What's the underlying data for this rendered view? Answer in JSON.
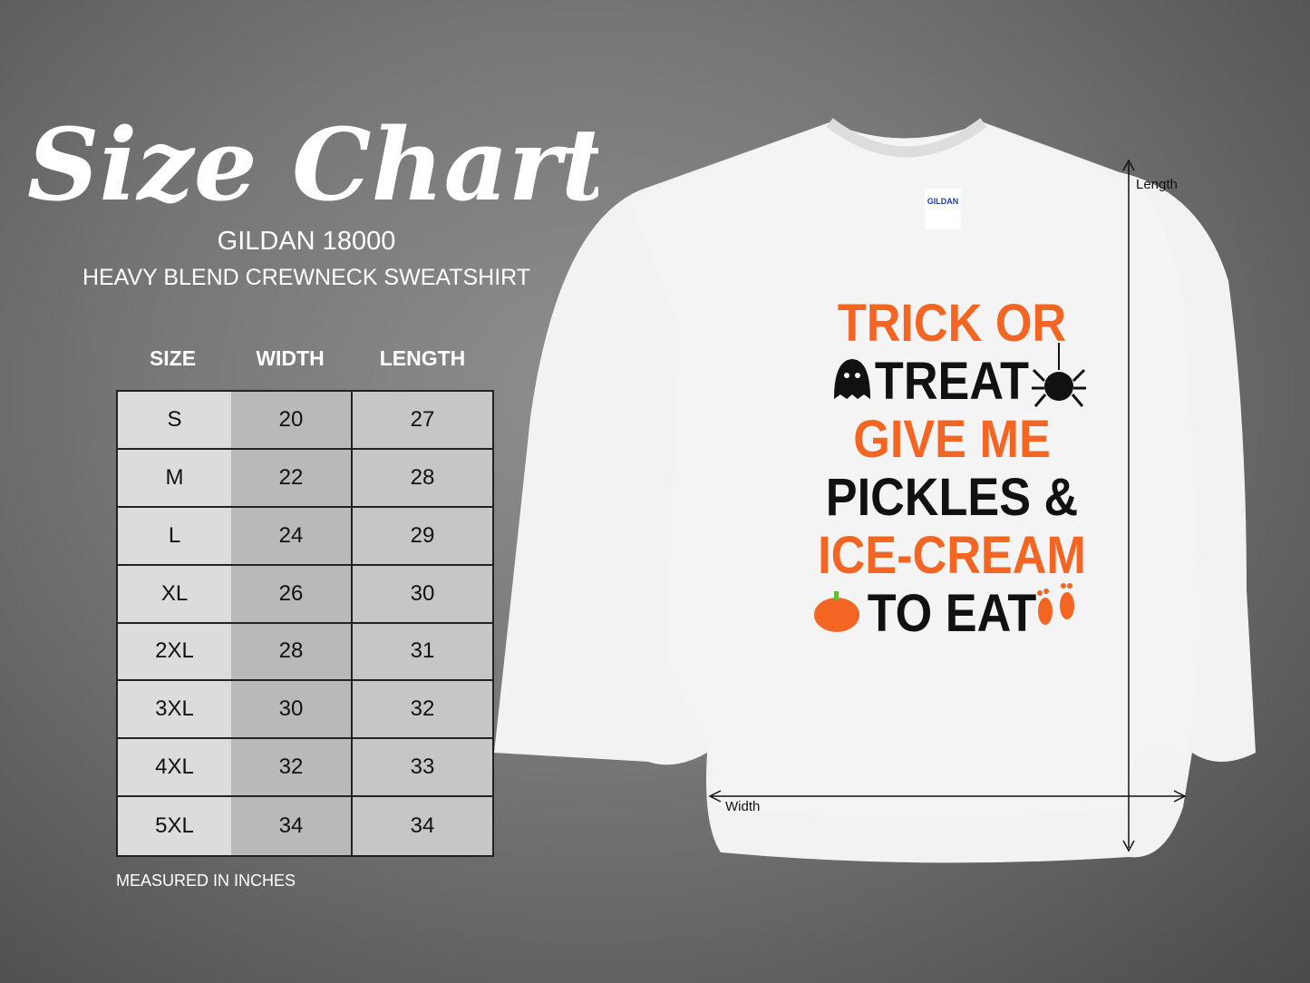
{
  "title": "Size Chart",
  "brand": "GILDAN 18000",
  "product": "HEAVY BLEND CREWNECK SWEATSHIRT",
  "table": {
    "headers": [
      "SIZE",
      "WIDTH",
      "LENGTH"
    ],
    "rows": [
      [
        "S",
        "20",
        "27"
      ],
      [
        "M",
        "22",
        "28"
      ],
      [
        "L",
        "24",
        "29"
      ],
      [
        "XL",
        "26",
        "30"
      ],
      [
        "2XL",
        "28",
        "31"
      ],
      [
        "3XL",
        "30",
        "32"
      ],
      [
        "4XL",
        "32",
        "33"
      ],
      [
        "5XL",
        "34",
        "34"
      ]
    ]
  },
  "note": "MEASURED IN INCHES",
  "garment": {
    "label_brand": "GILDAN",
    "design_lines": [
      "TRICK OR",
      "TREAT",
      "GIVE ME",
      "PICKLES &",
      "ICE-CREAM",
      "TO EAT"
    ],
    "colors": {
      "orange": "#f26522",
      "black": "#111111",
      "shirt": "#f2f2f2"
    },
    "length_label": "Length",
    "width_label": "Width"
  }
}
